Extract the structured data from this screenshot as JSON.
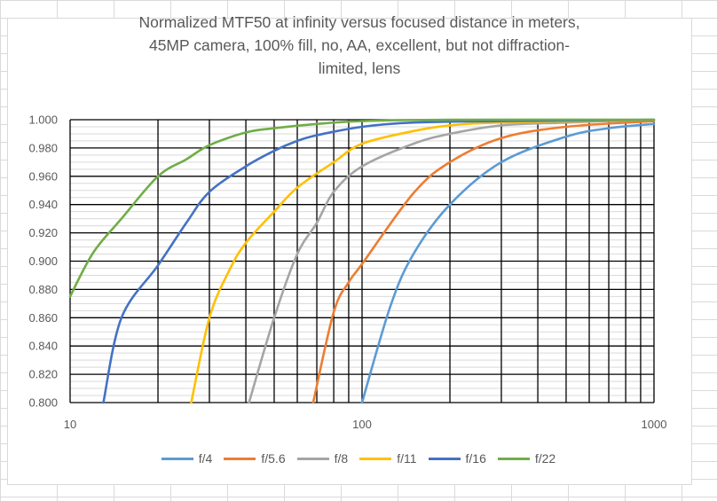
{
  "chart_data": {
    "type": "line",
    "title_lines": [
      "Normalized MTF50 at infinity versus focused distance in meters,",
      "45MP camera, 100% fill, no, AA, excellent, but not diffraction-",
      "limited, lens"
    ],
    "x_scale": "log",
    "xlim": [
      10,
      1000
    ],
    "ylim": [
      0.8,
      1.0
    ],
    "x_tick_labels": [
      "10",
      "100",
      "1000"
    ],
    "y_tick_labels": [
      "0.800",
      "0.820",
      "0.840",
      "0.860",
      "0.880",
      "0.900",
      "0.920",
      "0.940",
      "0.960",
      "0.980",
      "1.000"
    ],
    "grid": true,
    "legend_position": "bottom",
    "series": [
      {
        "name": "f/4",
        "color": "#5b9bd5",
        "x": [
          100,
          125,
          150,
          200,
          300,
          500,
          700,
          1000
        ],
        "y": [
          0.8,
          0.868,
          0.905,
          0.94,
          0.97,
          0.988,
          0.994,
          0.997
        ]
      },
      {
        "name": "f/5.6",
        "color": "#ed7d31",
        "x": [
          68,
          80,
          90,
          100,
          150,
          200,
          300,
          500,
          1000
        ],
        "y": [
          0.8,
          0.864,
          0.885,
          0.898,
          0.948,
          0.97,
          0.987,
          0.995,
          0.999
        ]
      },
      {
        "name": "f/8",
        "color": "#a5a5a5",
        "x": [
          41,
          50,
          60,
          70,
          80,
          100,
          150,
          200,
          300,
          500,
          1000
        ],
        "y": [
          0.8,
          0.86,
          0.905,
          0.927,
          0.949,
          0.967,
          0.983,
          0.99,
          0.996,
          0.998,
          1.0
        ]
      },
      {
        "name": "f/11",
        "color": "#ffc000",
        "x": [
          26,
          30,
          35,
          40,
          50,
          60,
          80,
          100,
          150,
          200,
          300,
          1000
        ],
        "y": [
          0.8,
          0.86,
          0.893,
          0.913,
          0.935,
          0.952,
          0.97,
          0.983,
          0.992,
          0.996,
          0.998,
          1.0
        ]
      },
      {
        "name": "f/16",
        "color": "#4472c4",
        "x": [
          13,
          15,
          20,
          25,
          30,
          40,
          50,
          60,
          70,
          100,
          150,
          300,
          1000
        ],
        "y": [
          0.8,
          0.86,
          0.897,
          0.927,
          0.949,
          0.967,
          0.978,
          0.985,
          0.989,
          0.995,
          0.998,
          0.999,
          1.0
        ]
      },
      {
        "name": "f/22",
        "color": "#70ad47",
        "x": [
          10,
          12,
          15,
          20,
          25,
          30,
          40,
          50,
          70,
          100,
          200,
          1000
        ],
        "y": [
          0.875,
          0.906,
          0.93,
          0.96,
          0.972,
          0.982,
          0.991,
          0.994,
          0.997,
          0.999,
          1.0,
          1.0
        ]
      }
    ]
  }
}
